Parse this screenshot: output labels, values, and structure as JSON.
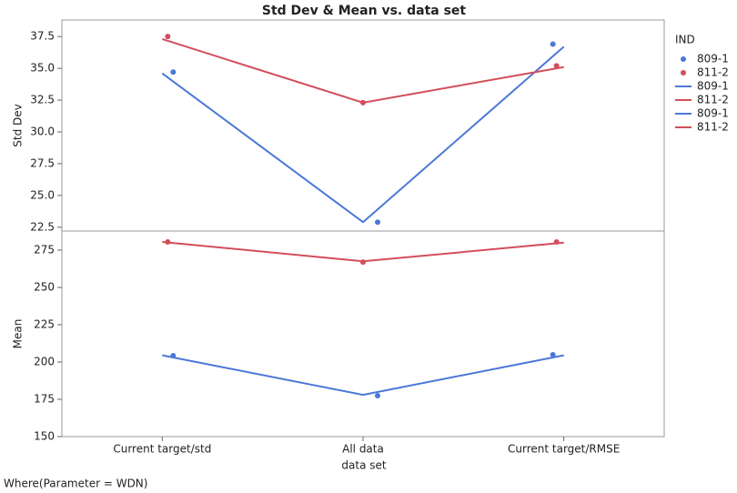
{
  "chart_data": {
    "type": "line",
    "title": "Std Dev & Mean vs. data set",
    "categories": [
      "Current target/std",
      "All data",
      "Current target/RMSE"
    ],
    "x_label": "data set",
    "legend_title": "IND",
    "legend": [
      {
        "name": "809-1",
        "marker": "point",
        "color": "#4a78d8"
      },
      {
        "name": "811-2",
        "marker": "point",
        "color": "#d24e5a"
      },
      {
        "name": "809-1",
        "marker": "line",
        "color": "#4a78d8"
      },
      {
        "name": "811-2",
        "marker": "line",
        "color": "#d24e5a"
      },
      {
        "name": "809-1",
        "marker": "line",
        "color": "#4a78d8"
      },
      {
        "name": "811-2",
        "marker": "line",
        "color": "#d24e5a"
      }
    ],
    "panels": [
      {
        "y_label": "Std Dev",
        "ylim": [
          22.2,
          38.8
        ],
        "yticks": [
          {
            "value": 22.5,
            "label": "22.5"
          },
          {
            "value": 25,
            "label": "25.0"
          },
          {
            "value": 27.5,
            "label": "27.5"
          },
          {
            "value": 30,
            "label": "30.0"
          },
          {
            "value": 32.5,
            "label": "32.5"
          },
          {
            "value": 35,
            "label": "35.0"
          },
          {
            "value": 37.5,
            "label": "37.5"
          }
        ],
        "points": [
          {
            "color": "#4a78d8",
            "values": [
              34.7,
              22.9,
              36.9
            ]
          },
          {
            "color": "#d24e5a",
            "values": [
              37.5,
              32.3,
              35.2
            ]
          }
        ],
        "lines": [
          {
            "color": "#4a78d8",
            "values": [
              34.6,
              22.9,
              36.7
            ]
          },
          {
            "color": "#d24e5a",
            "values": [
              37.3,
              32.3,
              35.1
            ]
          }
        ]
      },
      {
        "y_label": "Mean",
        "ylim": [
          150,
          287.8
        ],
        "yticks": [
          150,
          175,
          200,
          225,
          250,
          275
        ],
        "points": [
          {
            "color": "#4a78d8",
            "values": [
              204.3,
              177.4,
              204.9
            ]
          },
          {
            "color": "#d24e5a",
            "values": [
              280.5,
              267,
              280.5
            ]
          }
        ],
        "lines": [
          {
            "color": "#4a78d8",
            "values": [
              204.5,
              178,
              204.5
            ]
          },
          {
            "color": "#d24e5a",
            "values": [
              280.5,
              267.5,
              280
            ]
          }
        ]
      }
    ],
    "footnote": "Where(Parameter = WDN)"
  }
}
